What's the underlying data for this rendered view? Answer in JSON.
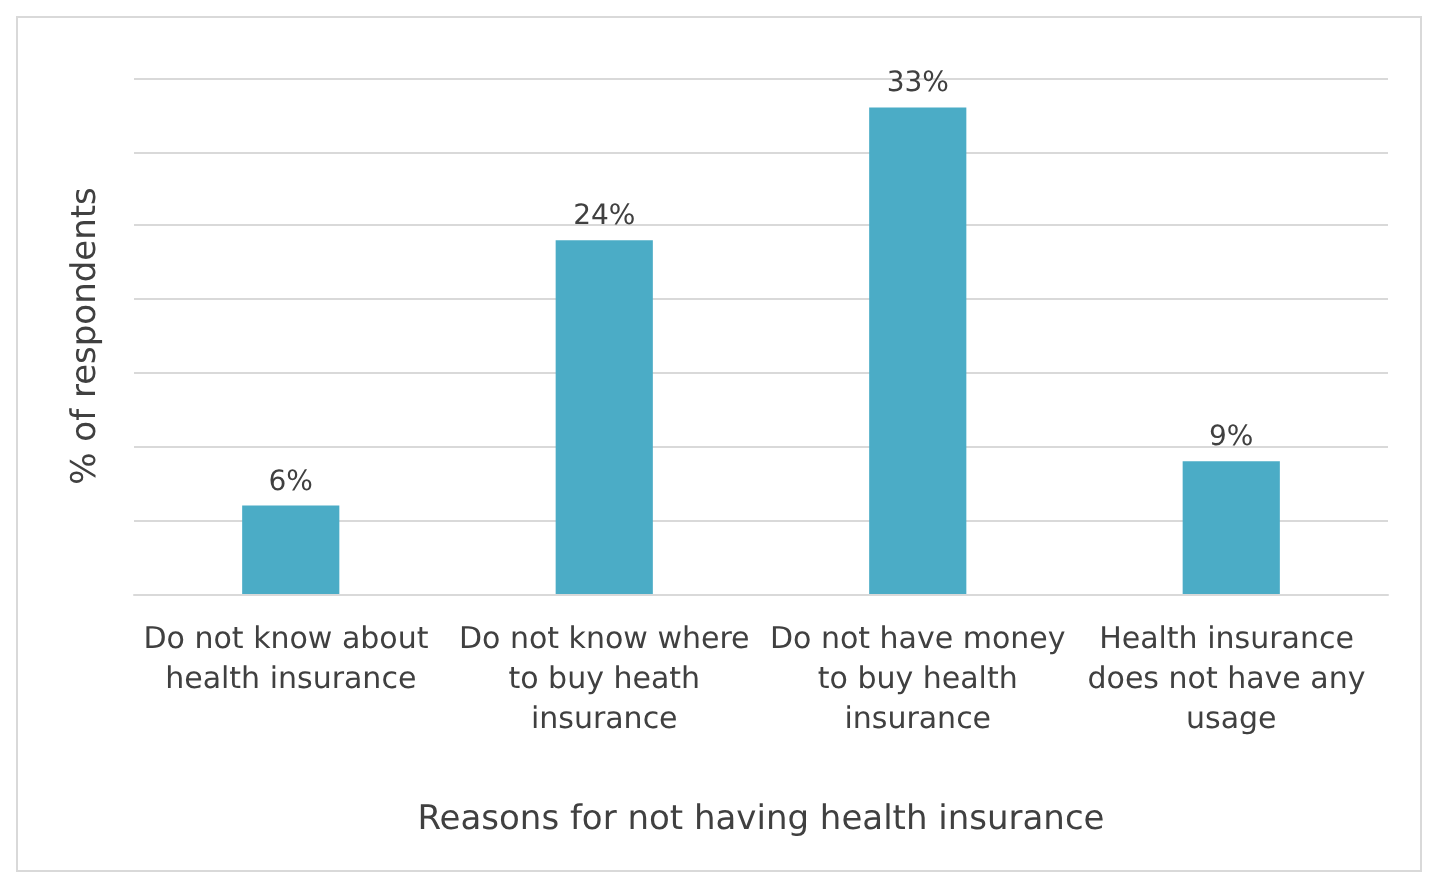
{
  "chart_data": {
    "type": "bar",
    "xlabel": "Reasons for not having health insurance",
    "ylabel": "% of respondents",
    "categories": [
      "Do not know about health insurance",
      "Do not know where to buy heath insurance",
      "Do not have money to buy health insurance",
      "Health insurance does not have any usage"
    ],
    "values": [
      6,
      24,
      33,
      9
    ],
    "color": "#4bacc6",
    "value_labels": [
      "6%",
      "24%",
      "33%",
      "9%"
    ],
    "ylim": [
      0,
      35
    ],
    "yticks": [
      {
        "value": 0,
        "label": null
      },
      {
        "value": 5,
        "label": null
      },
      {
        "value": 10,
        "label": null
      },
      {
        "value": 15,
        "label": null
      },
      {
        "value": 20,
        "label": null
      },
      {
        "value": 25,
        "label": null
      },
      {
        "value": 30,
        "label": null
      },
      {
        "value": 35,
        "label": null
      }
    ],
    "grid": "y",
    "tick_labels": "x"
  }
}
